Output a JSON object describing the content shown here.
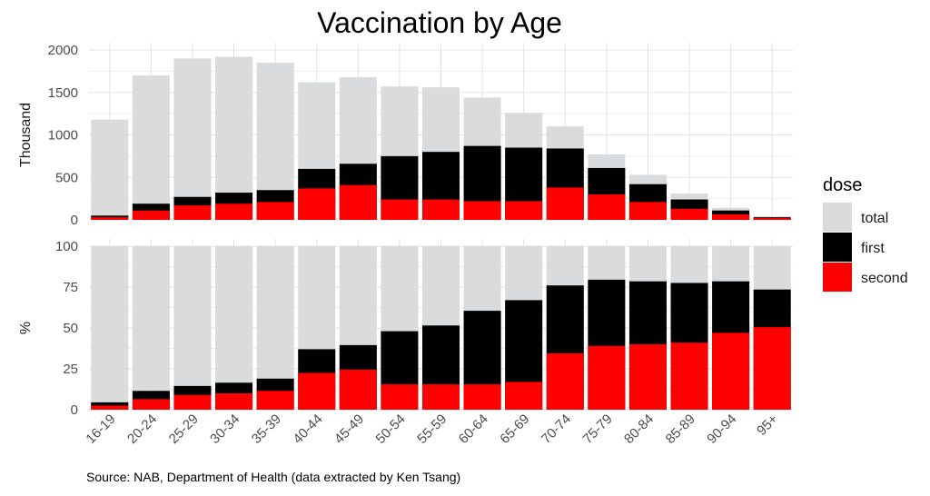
{
  "chart_data": {
    "type": "bar",
    "title": "Vaccination by Age",
    "caption": "Source: NAB, Department of Health (data extracted by Ken Tsang)",
    "categories": [
      "16-19",
      "20-24",
      "25-29",
      "30-34",
      "35-39",
      "40-44",
      "45-49",
      "50-54",
      "55-59",
      "60-64",
      "65-69",
      "70-74",
      "75-79",
      "80-84",
      "85-89",
      "90-94",
      "95+"
    ],
    "legend": {
      "title": "dose",
      "position": "right",
      "items": [
        {
          "label": "total",
          "color": "#d9dbdd"
        },
        {
          "label": "first",
          "color": "#000000"
        },
        {
          "label": "second",
          "color": "#ff0000"
        }
      ]
    },
    "panels": [
      {
        "ylabel": "Thousand",
        "ylim": [
          0,
          2000
        ],
        "yticks": [
          "0",
          "500",
          "1000",
          "1500",
          "2000"
        ],
        "ytick_values": [
          0,
          500,
          1000,
          1500,
          2000
        ],
        "series": [
          {
            "name": "total",
            "values": [
              1180,
              1700,
              1900,
              1920,
              1850,
              1620,
              1680,
              1570,
              1560,
              1440,
              1260,
              1100,
              770,
              530,
              310,
              140,
              40
            ]
          },
          {
            "name": "first",
            "values": [
              50,
              190,
              270,
              320,
              350,
              600,
              660,
              750,
              800,
              870,
              850,
              840,
              610,
              420,
              240,
              110,
              30
            ]
          },
          {
            "name": "second",
            "values": [
              30,
              110,
              170,
              190,
              210,
              370,
              410,
              240,
              240,
              220,
              220,
              380,
              300,
              210,
              130,
              65,
              20
            ]
          }
        ]
      },
      {
        "ylabel": "%",
        "ylim": [
          0,
          100
        ],
        "yticks": [
          "0",
          "25",
          "50",
          "75",
          "100"
        ],
        "ytick_values": [
          0,
          25,
          50,
          75,
          100
        ],
        "series": [
          {
            "name": "total",
            "values": [
              100,
              100,
              100,
              100,
              100,
              100,
              100,
              100,
              100,
              100,
              100,
              100,
              100,
              100,
              100,
              100,
              100
            ]
          },
          {
            "name": "first",
            "values": [
              4.5,
              11.5,
              14.5,
              16.5,
              19,
              37,
              39.5,
              48,
              51.5,
              60.5,
              67,
              76,
              79.5,
              78.5,
              77.5,
              78.5,
              73.5
            ]
          },
          {
            "name": "second",
            "values": [
              2.5,
              6.5,
              9,
              10,
              11.5,
              22.5,
              24.5,
              15.5,
              15.5,
              15.5,
              17,
              34.5,
              39,
              40,
              41,
              47,
              50.5
            ]
          }
        ]
      }
    ],
    "grid": true
  }
}
